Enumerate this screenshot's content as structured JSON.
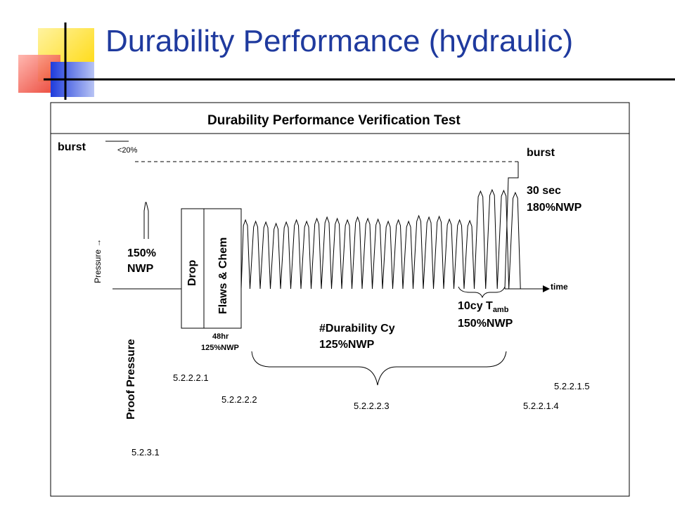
{
  "slide": {
    "title": "Durability Performance (hydraulic)"
  },
  "diagram": {
    "title": "Durability Performance Verification Test",
    "left_burst": "burst",
    "less_than_20": "<20%",
    "right_burst": "burst",
    "hold_duration": "30 sec",
    "hold_pressure": "180%NWP",
    "pressure_axis": "Pressure",
    "time_axis": "time",
    "proof_pressure_value_line1": "150%",
    "proof_pressure_value_line2": "NWP",
    "drop_label": "Drop",
    "flaws_chem_label": "Flaws & Chem",
    "flaws_duration": "48hr",
    "flaws_pressure": "125%NWP",
    "ambient_cycles": "10cy T",
    "ambient_subscript": "amb",
    "ambient_pressure": "150%NWP",
    "durability_cycles": "#Durability Cy",
    "durability_pressure": "125%NWP",
    "proof_pressure_label": "Proof Pressure",
    "sections": {
      "s5_2_3_1": "5.2.3.1",
      "s5_2_2_2_1": "5.2.2.2.1",
      "s5_2_2_2_2": "5.2.2.2.2",
      "s5_2_2_2_3": "5.2.2.2.3",
      "s5_2_2_1_4": "5.2.2.1.4",
      "s5_2_2_1_5": "5.2.2.1.5"
    }
  },
  "colors": {
    "title_blue": "#1f3a9e",
    "logo_yellow": "#ffd700",
    "logo_red": "#e83020",
    "logo_blue": "#1e3cdc",
    "line": "#000000"
  }
}
